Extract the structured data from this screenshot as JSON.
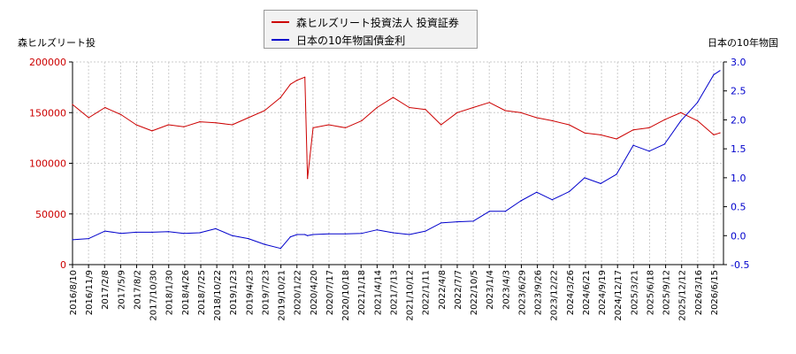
{
  "chart_data": {
    "type": "line",
    "legend": [
      {
        "label": "森ヒルズリート投資法人 投資証券",
        "color": "#cc0000"
      },
      {
        "label": "日本の10年物国債金利",
        "color": "#0000cc"
      }
    ],
    "left_axis": {
      "title": "森ヒルズリート投",
      "range": [
        0,
        200000
      ],
      "ticks": [
        "0",
        "50000",
        "100000",
        "150000",
        "200000"
      ],
      "color": "#cc0000"
    },
    "right_axis": {
      "title": "日本の10年物国",
      "range": [
        -0.5,
        3.0
      ],
      "ticks": [
        "-0.5",
        "0.0",
        "0.5",
        "1.0",
        "1.5",
        "2.0",
        "2.5",
        "3.0"
      ],
      "color": "#0000cc"
    },
    "x_tick_labels": [
      "2016/8/10",
      "2016/11/9",
      "2017/2/8",
      "2017/5/9",
      "2017/8/2",
      "2017/10/30",
      "2018/1/30",
      "2018/4/26",
      "2018/7/25",
      "2018/10/22",
      "2019/1/23",
      "2019/4/23",
      "2019/7/23",
      "2019/10/21",
      "2020/1/22",
      "2020/4/20",
      "2020/7/17",
      "2020/10/18",
      "2021/1/18",
      "2021/4/14",
      "2021/7/13",
      "2021/10/12",
      "2022/1/11",
      "2022/4/8",
      "2022/7/7",
      "2022/10/5",
      "2023/1/4",
      "2023/4/3",
      "2023/6/29",
      "2023/9/26",
      "2023/12/22",
      "2024/3/26",
      "2024/6/21",
      "2024/9/19",
      "2024/12/17",
      "2025/3/21",
      "2025/6/18",
      "2025/9/12",
      "2025/12/12",
      "2026/3/16",
      "2026/6/15"
    ],
    "x": [
      "2016/8/10",
      "2016/11/9",
      "2017/2/8",
      "2017/5/9",
      "2017/8/2",
      "2017/10/30",
      "2018/1/30",
      "2018/4/26",
      "2018/7/25",
      "2018/10/22",
      "2019/1/23",
      "2019/4/23",
      "2019/7/23",
      "2019/10/21",
      "2019/12/15",
      "2020/1/22",
      "2020/3/5",
      "2020/3/20",
      "2020/4/20",
      "2020/7/17",
      "2020/10/18",
      "2021/1/18",
      "2021/4/14",
      "2021/7/13",
      "2021/10/12",
      "2022/1/11",
      "2022/4/8",
      "2022/7/7",
      "2022/10/5",
      "2023/1/4",
      "2023/4/3",
      "2023/6/29",
      "2023/9/26",
      "2023/12/22",
      "2024/3/26",
      "2024/6/21",
      "2024/9/19",
      "2024/12/17",
      "2025/3/21",
      "2025/6/18",
      "2025/9/12",
      "2025/12/12",
      "2026/3/16",
      "2026/6/15",
      "2026/7/20"
    ],
    "series": [
      {
        "name": "森ヒルズリート投資法人 投資証券",
        "axis": "left",
        "color": "#cc0000",
        "values": [
          158000,
          145000,
          155000,
          148000,
          138000,
          132000,
          138000,
          136000,
          141000,
          140000,
          138000,
          145000,
          152000,
          165000,
          178000,
          182000,
          185000,
          85000,
          135000,
          138000,
          135000,
          142000,
          155000,
          165000,
          155000,
          153000,
          138000,
          150000,
          155000,
          160000,
          152000,
          150000,
          145000,
          142000,
          138000,
          130000,
          128000,
          124000,
          133000,
          135000,
          143000,
          150000,
          142000,
          128000,
          130000
        ]
      },
      {
        "name": "日本の10年物国債金利",
        "axis": "right",
        "color": "#0000cc",
        "values": [
          -0.07,
          -0.05,
          0.08,
          0.04,
          0.06,
          0.06,
          0.07,
          0.04,
          0.05,
          0.12,
          0.0,
          -0.05,
          -0.15,
          -0.22,
          -0.02,
          0.02,
          0.02,
          0.0,
          0.02,
          0.03,
          0.03,
          0.04,
          0.1,
          0.05,
          0.02,
          0.08,
          0.22,
          0.24,
          0.25,
          0.42,
          0.42,
          0.6,
          0.75,
          0.62,
          0.76,
          1.0,
          0.9,
          1.06,
          1.56,
          1.46,
          1.58,
          1.98,
          2.3,
          2.78,
          2.85
        ]
      }
    ]
  }
}
